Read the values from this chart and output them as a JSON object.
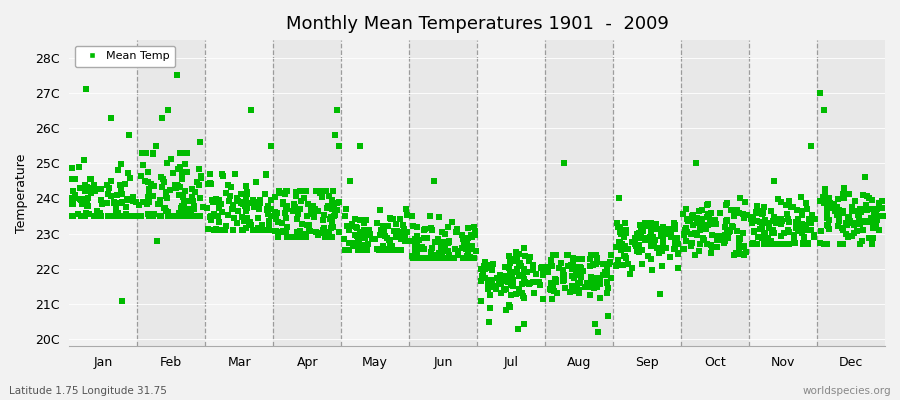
{
  "title": "Monthly Mean Temperatures 1901  -  2009",
  "ylabel": "Temperature",
  "xlabel_labels": [
    "Jan",
    "Feb",
    "Mar",
    "Apr",
    "May",
    "Jun",
    "Jul",
    "Aug",
    "Sep",
    "Oct",
    "Nov",
    "Dec"
  ],
  "ytick_labels": [
    "20C",
    "21C",
    "22C",
    "23C",
    "24C",
    "25C",
    "26C",
    "27C",
    "28C"
  ],
  "ytick_values": [
    20,
    21,
    22,
    23,
    24,
    25,
    26,
    27,
    28
  ],
  "ylim": [
    19.8,
    28.5
  ],
  "xlim": [
    -0.5,
    12.5
  ],
  "marker_color": "#00BB00",
  "marker": "s",
  "marker_size": 4,
  "legend_label": "Mean Temp",
  "subtitle": "Latitude 1.75 Longitude 31.75",
  "watermark": "worldspecies.org",
  "background_color": "#f2f2f2",
  "band_color_light": "#f2f2f2",
  "band_color_dark": "#e8e8e8",
  "n_years": 109,
  "figsize": [
    9.0,
    4.0
  ],
  "dpi": 100,
  "month_means": [
    23.85,
    24.1,
    23.65,
    23.55,
    22.85,
    22.6,
    21.85,
    21.75,
    22.7,
    23.05,
    23.15,
    23.5
  ],
  "month_stds": [
    0.52,
    0.7,
    0.55,
    0.52,
    0.38,
    0.38,
    0.42,
    0.42,
    0.38,
    0.38,
    0.4,
    0.45
  ],
  "month_mins": [
    23.5,
    23.5,
    23.1,
    22.9,
    22.55,
    22.3,
    20.2,
    20.1,
    21.1,
    22.4,
    22.7,
    22.7
  ],
  "month_maxs": [
    25.1,
    25.3,
    24.7,
    24.2,
    23.7,
    23.5,
    22.6,
    22.4,
    23.3,
    23.9,
    24.1,
    24.6
  ],
  "month_high_outliers": [
    [
      27.1,
      26.3,
      25.8
    ],
    [
      27.8,
      27.5,
      26.5,
      26.3,
      25.6,
      25.5
    ],
    [
      26.5,
      25.5
    ],
    [
      26.5,
      25.8,
      25.5
    ],
    [
      25.5,
      24.5
    ],
    [
      24.5
    ],
    [],
    [
      25.0
    ],
    [
      24.0
    ],
    [
      24.0,
      25.0
    ],
    [
      24.5,
      25.5
    ],
    [
      26.5,
      27.0
    ]
  ],
  "month_low_outliers": [
    [
      21.1
    ],
    [
      22.8
    ],
    [],
    [],
    [],
    [],
    [
      20.5,
      20.3
    ],
    [
      20.2
    ],
    [],
    [],
    [],
    []
  ]
}
